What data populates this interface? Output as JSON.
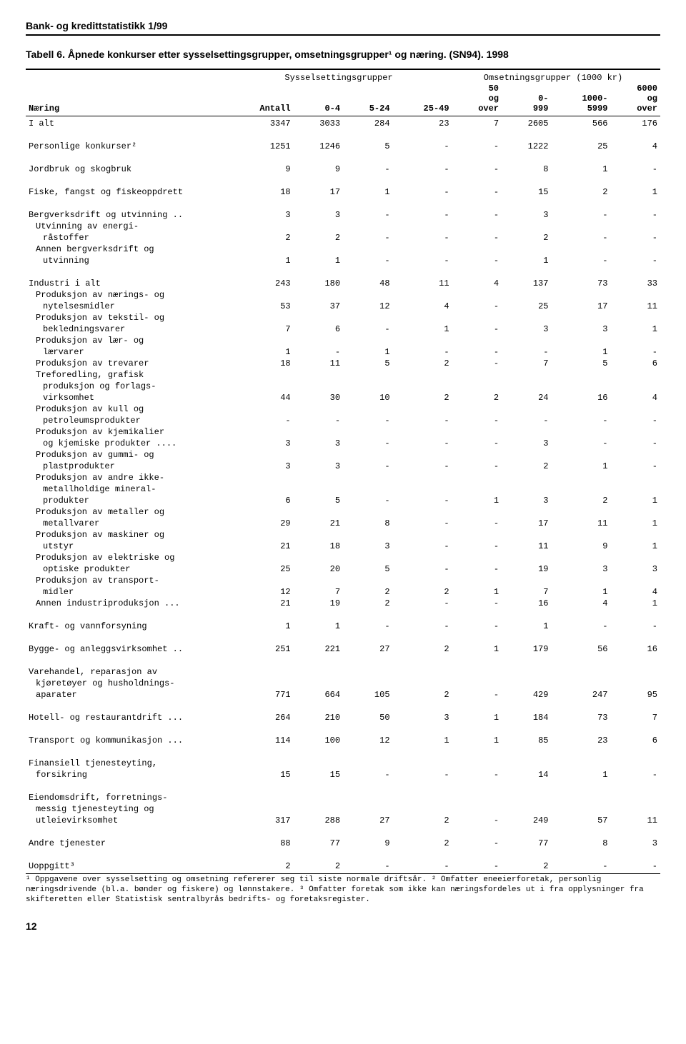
{
  "header": "Bank- og kredittstatistikk 1/99",
  "title": "Tabell 6. Åpnede konkurser etter sysselsettingsgrupper, omsetningsgrupper¹ og næring. (SN94). 1998",
  "spanner_left": "Sysselsettingsgrupper",
  "spanner_right": "Omsetningsgrupper (1000 kr)",
  "columns": {
    "naering": "Næring",
    "antall": "Antall",
    "c0_4": "0-4",
    "c5_24": "5-24",
    "c25_49": "25-49",
    "c50": "50\nog\nover",
    "c0_999": "0-\n999",
    "c1000_5999": "1000-\n5999",
    "c6000": "6000\nog\nover"
  },
  "rows": [
    {
      "label": "I alt",
      "indent": 0,
      "antall": "3347",
      "c": [
        "3033",
        "284",
        "23",
        "7",
        "2605",
        "566",
        "176"
      ]
    },
    {
      "blank": true
    },
    {
      "label": "Personlige konkurser²",
      "indent": 0,
      "antall": "1251",
      "c": [
        "1246",
        "5",
        "-",
        "-",
        "1222",
        "25",
        "4"
      ]
    },
    {
      "blank": true
    },
    {
      "label": "Jordbruk og skogbruk",
      "indent": 0,
      "antall": "9",
      "c": [
        "9",
        "-",
        "-",
        "-",
        "8",
        "1",
        "-"
      ]
    },
    {
      "blank": true
    },
    {
      "label": "Fiske, fangst og fiskeoppdrett",
      "indent": 0,
      "antall": "18",
      "c": [
        "17",
        "1",
        "-",
        "-",
        "15",
        "2",
        "1"
      ]
    },
    {
      "blank": true
    },
    {
      "label": "Bergverksdrift og utvinning ..",
      "indent": 0,
      "antall": "3",
      "c": [
        "3",
        "-",
        "-",
        "-",
        "3",
        "-",
        "-"
      ]
    },
    {
      "label": "Utvinning av energi-",
      "indent": 1,
      "nodata": true
    },
    {
      "label": "råstoffer",
      "indent": 2,
      "antall": "2",
      "c": [
        "2",
        "-",
        "-",
        "-",
        "2",
        "-",
        "-"
      ]
    },
    {
      "label": "Annen bergverksdrift og",
      "indent": 1,
      "nodata": true
    },
    {
      "label": "utvinning",
      "indent": 2,
      "antall": "1",
      "c": [
        "1",
        "-",
        "-",
        "-",
        "1",
        "-",
        "-"
      ]
    },
    {
      "blank": true
    },
    {
      "label": "Industri i alt",
      "indent": 0,
      "antall": "243",
      "c": [
        "180",
        "48",
        "11",
        "4",
        "137",
        "73",
        "33"
      ]
    },
    {
      "label": "Produksjon av nærings- og",
      "indent": 1,
      "nodata": true
    },
    {
      "label": "nytelsesmidler",
      "indent": 2,
      "antall": "53",
      "c": [
        "37",
        "12",
        "4",
        "-",
        "25",
        "17",
        "11"
      ]
    },
    {
      "label": "Produksjon av tekstil- og",
      "indent": 1,
      "nodata": true
    },
    {
      "label": "bekledningsvarer",
      "indent": 2,
      "antall": "7",
      "c": [
        "6",
        "-",
        "1",
        "-",
        "3",
        "3",
        "1"
      ]
    },
    {
      "label": "Produksjon av lær- og",
      "indent": 1,
      "nodata": true
    },
    {
      "label": "lærvarer",
      "indent": 2,
      "antall": "1",
      "c": [
        "-",
        "1",
        "-",
        "-",
        "-",
        "1",
        "-"
      ]
    },
    {
      "label": "Produksjon av trevarer",
      "indent": 1,
      "antall": "18",
      "c": [
        "11",
        "5",
        "2",
        "-",
        "7",
        "5",
        "6"
      ]
    },
    {
      "label": "Treforedling, grafisk",
      "indent": 1,
      "nodata": true
    },
    {
      "label": "produksjon og forlags-",
      "indent": 2,
      "nodata": true
    },
    {
      "label": "virksomhet",
      "indent": 2,
      "antall": "44",
      "c": [
        "30",
        "10",
        "2",
        "2",
        "24",
        "16",
        "4"
      ]
    },
    {
      "label": "Produksjon av kull og",
      "indent": 1,
      "nodata": true
    },
    {
      "label": "petroleumsprodukter",
      "indent": 2,
      "antall": "-",
      "c": [
        "-",
        "-",
        "-",
        "-",
        "-",
        "-",
        "-"
      ]
    },
    {
      "label": "Produksjon av kjemikalier",
      "indent": 1,
      "nodata": true
    },
    {
      "label": "og kjemiske produkter ....",
      "indent": 2,
      "antall": "3",
      "c": [
        "3",
        "-",
        "-",
        "-",
        "3",
        "-",
        "-"
      ]
    },
    {
      "label": "Produksjon av gummi- og",
      "indent": 1,
      "nodata": true
    },
    {
      "label": "plastprodukter",
      "indent": 2,
      "antall": "3",
      "c": [
        "3",
        "-",
        "-",
        "-",
        "2",
        "1",
        "-"
      ]
    },
    {
      "label": "Produksjon av andre ikke-",
      "indent": 1,
      "nodata": true
    },
    {
      "label": "metallholdige mineral-",
      "indent": 2,
      "nodata": true
    },
    {
      "label": "produkter",
      "indent": 2,
      "antall": "6",
      "c": [
        "5",
        "-",
        "-",
        "1",
        "3",
        "2",
        "1"
      ]
    },
    {
      "label": "Produksjon av metaller og",
      "indent": 1,
      "nodata": true
    },
    {
      "label": "metallvarer",
      "indent": 2,
      "antall": "29",
      "c": [
        "21",
        "8",
        "-",
        "-",
        "17",
        "11",
        "1"
      ]
    },
    {
      "label": "Produksjon av maskiner og",
      "indent": 1,
      "nodata": true
    },
    {
      "label": "utstyr",
      "indent": 2,
      "antall": "21",
      "c": [
        "18",
        "3",
        "-",
        "-",
        "11",
        "9",
        "1"
      ]
    },
    {
      "label": "Produksjon av elektriske og",
      "indent": 1,
      "nodata": true
    },
    {
      "label": "optiske produkter",
      "indent": 2,
      "antall": "25",
      "c": [
        "20",
        "5",
        "-",
        "-",
        "19",
        "3",
        "3"
      ]
    },
    {
      "label": "Produksjon av transport-",
      "indent": 1,
      "nodata": true
    },
    {
      "label": "midler",
      "indent": 2,
      "antall": "12",
      "c": [
        "7",
        "2",
        "2",
        "1",
        "7",
        "1",
        "4"
      ]
    },
    {
      "label": "Annen industriproduksjon ...",
      "indent": 1,
      "antall": "21",
      "c": [
        "19",
        "2",
        "-",
        "-",
        "16",
        "4",
        "1"
      ]
    },
    {
      "blank": true
    },
    {
      "label": "Kraft- og vannforsyning",
      "indent": 0,
      "antall": "1",
      "c": [
        "1",
        "-",
        "-",
        "-",
        "1",
        "-",
        "-"
      ]
    },
    {
      "blank": true
    },
    {
      "label": "Bygge- og anleggsvirksomhet ..",
      "indent": 0,
      "antall": "251",
      "c": [
        "221",
        "27",
        "2",
        "1",
        "179",
        "56",
        "16"
      ]
    },
    {
      "blank": true
    },
    {
      "label": "Varehandel, reparasjon av",
      "indent": 0,
      "nodata": true
    },
    {
      "label": "kjøretøyer og husholdnings-",
      "indent": 1,
      "nodata": true
    },
    {
      "label": "aparater",
      "indent": 1,
      "antall": "771",
      "c": [
        "664",
        "105",
        "2",
        "-",
        "429",
        "247",
        "95"
      ]
    },
    {
      "blank": true
    },
    {
      "label": "Hotell- og restaurantdrift ...",
      "indent": 0,
      "antall": "264",
      "c": [
        "210",
        "50",
        "3",
        "1",
        "184",
        "73",
        "7"
      ]
    },
    {
      "blank": true
    },
    {
      "label": "Transport og kommunikasjon ...",
      "indent": 0,
      "antall": "114",
      "c": [
        "100",
        "12",
        "1",
        "1",
        "85",
        "23",
        "6"
      ]
    },
    {
      "blank": true
    },
    {
      "label": "Finansiell tjenesteyting,",
      "indent": 0,
      "nodata": true
    },
    {
      "label": "forsikring",
      "indent": 1,
      "antall": "15",
      "c": [
        "15",
        "-",
        "-",
        "-",
        "14",
        "1",
        "-"
      ]
    },
    {
      "blank": true
    },
    {
      "label": "Eiendomsdrift, forretnings-",
      "indent": 0,
      "nodata": true
    },
    {
      "label": "messig tjenesteyting og",
      "indent": 1,
      "nodata": true
    },
    {
      "label": "utleievirksomhet",
      "indent": 1,
      "antall": "317",
      "c": [
        "288",
        "27",
        "2",
        "-",
        "249",
        "57",
        "11"
      ]
    },
    {
      "blank": true
    },
    {
      "label": "Andre tjenester",
      "indent": 0,
      "antall": "88",
      "c": [
        "77",
        "9",
        "2",
        "-",
        "77",
        "8",
        "3"
      ]
    },
    {
      "blank": true
    },
    {
      "label": "Uoppgitt³",
      "indent": 0,
      "antall": "2",
      "c": [
        "2",
        "-",
        "-",
        "-",
        "2",
        "-",
        "-"
      ]
    }
  ],
  "footnote": "¹ Oppgavene over sysselsetting og omsetning refererer seg til siste normale driftsår.  ² Omfatter eneeierforetak, personlig næringsdrivende (bl.a. bønder og fiskere) og lønnstakere.  ³ Omfatter foretak som ikke kan næringsfordeles ut i fra opplysninger fra skifteretten eller Statistisk sentralbyrås bedrifts- og foretaksregister.",
  "page_number": "12"
}
